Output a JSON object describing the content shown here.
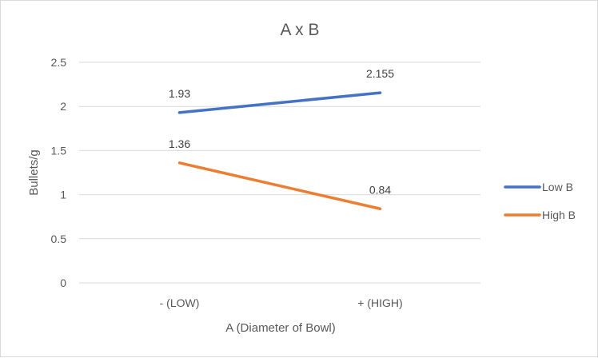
{
  "chart_data": {
    "type": "line",
    "title": "A x B",
    "xlabel": "A (Diameter of Bowl)",
    "ylabel": "Bullets/g",
    "categories": [
      "- (LOW)",
      "+ (HIGH)"
    ],
    "ylim": [
      0,
      2.5
    ],
    "yticks": [
      0,
      0.5,
      1,
      1.5,
      2,
      2.5
    ],
    "ytick_labels": [
      "0",
      "0.5",
      "1",
      "1.5",
      "2",
      "2.5"
    ],
    "grid": true,
    "legend_position": "right",
    "series": [
      {
        "name": "Low B",
        "values": [
          1.93,
          2.155
        ],
        "labels": [
          "1.93",
          "2.155"
        ],
        "color": "#4472c4"
      },
      {
        "name": "High B",
        "values": [
          1.36,
          0.84
        ],
        "labels": [
          "1.36",
          "0.84"
        ],
        "color": "#ed7d31"
      }
    ]
  }
}
